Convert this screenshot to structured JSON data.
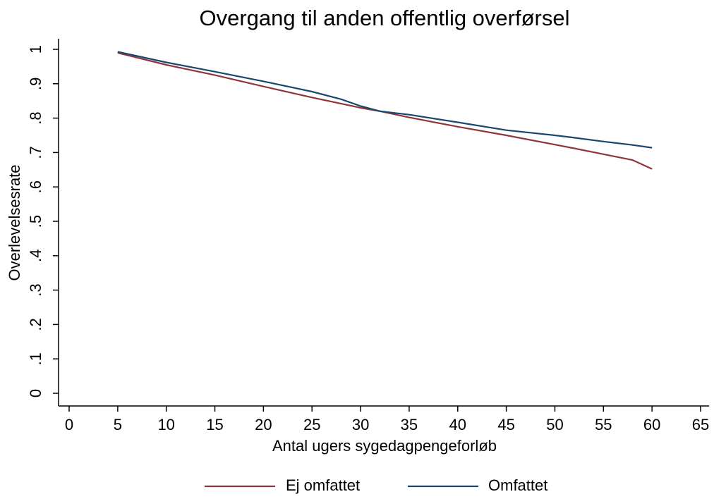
{
  "chart_data": {
    "type": "line",
    "title": "Overgang til anden offentlig overførsel",
    "x_label": "Antal ugers sygedagpengeforløb",
    "y_label": "Overlevelsesrate",
    "x": [
      5,
      10,
      15,
      20,
      25,
      28,
      30,
      32,
      35,
      40,
      45,
      50,
      52,
      55,
      58,
      60
    ],
    "series": [
      {
        "name": "Ej omfattet",
        "color": "#90353b",
        "values": [
          0.99,
          0.955,
          0.925,
          0.892,
          0.86,
          0.842,
          0.83,
          0.82,
          0.802,
          0.775,
          0.75,
          0.723,
          0.712,
          0.695,
          0.678,
          0.652
        ]
      },
      {
        "name": "Omfattet",
        "color": "#1a476f",
        "values": [
          0.993,
          0.962,
          0.935,
          0.907,
          0.877,
          0.855,
          0.835,
          0.82,
          0.81,
          0.788,
          0.765,
          0.75,
          0.743,
          0.732,
          0.722,
          0.714
        ]
      }
    ],
    "xlim": [
      0,
      65
    ],
    "xticks": [
      0,
      5,
      10,
      15,
      20,
      25,
      30,
      35,
      40,
      45,
      50,
      55,
      60,
      65
    ],
    "ylim": [
      0,
      1
    ],
    "yticks": [
      0,
      {
        "value": 0.1,
        "label": ".1"
      },
      {
        "value": 0.2,
        "label": ".2"
      },
      {
        "value": 0.3,
        "label": ".3"
      },
      {
        "value": 0.4,
        "label": ".4"
      },
      {
        "value": 0.5,
        "label": ".5"
      },
      {
        "value": 0.6,
        "label": ".6"
      },
      {
        "value": 0.7,
        "label": ".7"
      },
      {
        "value": 0.8,
        "label": ".8"
      },
      {
        "value": 0.9,
        "label": ".9"
      },
      1
    ],
    "grid": false,
    "legend": "bottom"
  }
}
